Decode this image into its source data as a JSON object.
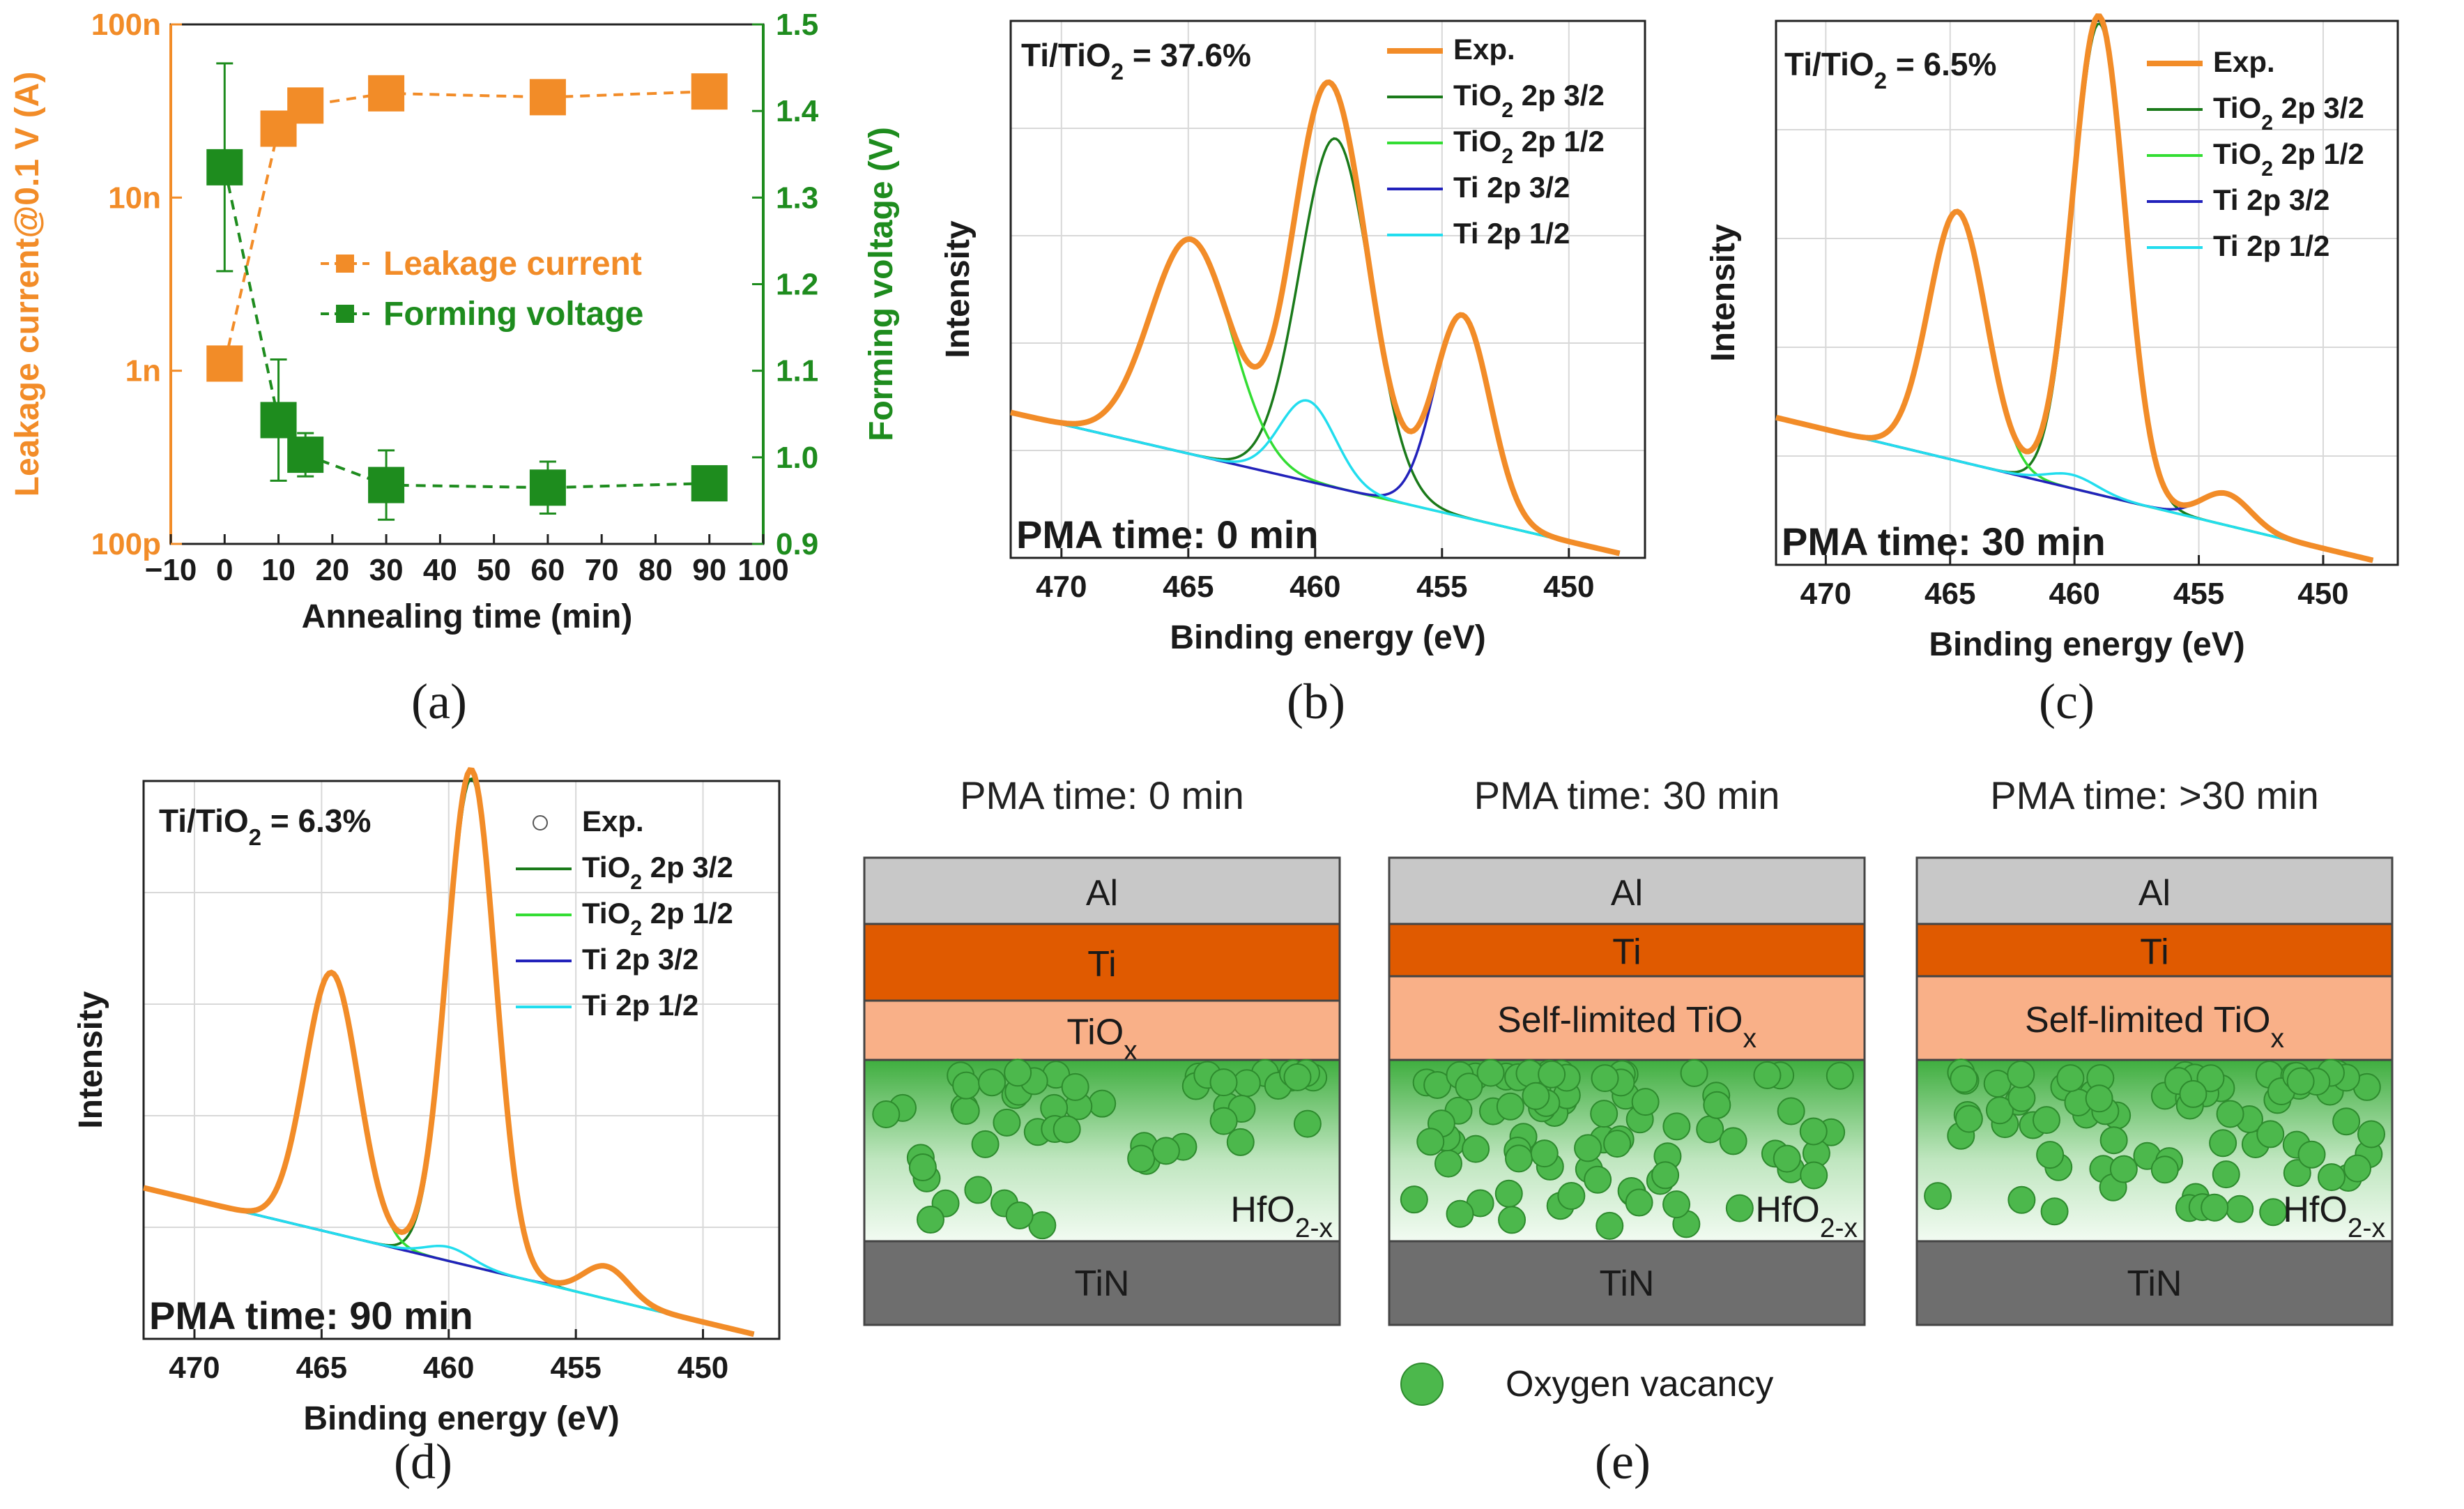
{
  "panel_labels": {
    "a": "(a)",
    "b": "(b)",
    "c": "(c)",
    "d": "(d)",
    "e": "(e)"
  },
  "colors": {
    "orange": "#F28C28",
    "green": "#1E8C1E",
    "tio2_32": "#1A7A1A",
    "tio2_12": "#33DD33",
    "ti_32": "#2222BB",
    "ti_12": "#22DDEE",
    "background": "#909090",
    "al": "#C8C8C8",
    "ti": "#E05A00",
    "tiox": "#F9B088",
    "tin": "#6E6E6E",
    "vacancy": "#4CB84C"
  },
  "chart_data": [
    {
      "id": "a",
      "type": "scatter",
      "xlabel": "Annealing time (min)",
      "ylabel_left": "Leakage current@0.1 V (A)",
      "ylabel_right": "Forming voltage (V)",
      "xlim": [
        -10,
        100
      ],
      "xticks": [
        -10,
        0,
        10,
        20,
        30,
        40,
        50,
        60,
        70,
        80,
        90,
        100
      ],
      "ylim_left_log": [
        1e-10,
        1e-07
      ],
      "yticks_left": [
        {
          "value": 1e-10,
          "label": "100p"
        },
        {
          "value": 1e-09,
          "label": "1n"
        },
        {
          "value": 1e-08,
          "label": "10n"
        },
        {
          "value": 1e-07,
          "label": "100n"
        }
      ],
      "ylim_right": [
        0.9,
        1.5
      ],
      "yticks_right": [
        0.9,
        1.0,
        1.1,
        1.2,
        1.3,
        1.4,
        1.5
      ],
      "series": [
        {
          "name": "Leakage current",
          "axis": "left",
          "x": [
            0,
            10,
            15,
            30,
            60,
            90
          ],
          "y": [
            1.1e-09,
            2.5e-08,
            3.4e-08,
            4e-08,
            3.8e-08,
            4.1e-08
          ]
        },
        {
          "name": "Forming voltage",
          "axis": "right",
          "x": [
            0,
            10,
            15,
            30,
            60,
            90
          ],
          "y": [
            1.335,
            1.043,
            1.003,
            0.968,
            0.965,
            0.97
          ],
          "err": [
            0.12,
            0.07,
            0.025,
            0.04,
            0.03,
            0.015
          ]
        }
      ]
    },
    {
      "id": "b",
      "type": "line",
      "ratio_label": "Ti/TiO₂ = 37.6%",
      "annotation": "PMA time: 0 min",
      "xlabel": "Binding energy (eV)",
      "ylabel": "Intensity",
      "xlim": [
        472,
        447
      ],
      "xticks": [
        470,
        465,
        460,
        455,
        450
      ],
      "ylim": [
        0,
        1.2
      ],
      "background": [
        0.35,
        0.004
      ],
      "peaks": [
        {
          "name": "TiO₂ 2p 3/2",
          "center": 459.2,
          "height": 0.78,
          "sigma": 1.4
        },
        {
          "name": "TiO₂ 2p 1/2",
          "center": 464.9,
          "height": 0.48,
          "sigma": 1.6
        },
        {
          "name": "Ti 2p 3/2",
          "center": 454.2,
          "height": 0.45,
          "sigma": 1.1
        },
        {
          "name": "Ti 2p 1/2",
          "center": 460.3,
          "height": 0.18,
          "sigma": 1.1
        }
      ],
      "legend": [
        "Exp.",
        "TiO₂ 2p 3/2",
        "TiO₂ 2p 1/2",
        "Ti 2p 3/2",
        "Ti 2p 1/2"
      ]
    },
    {
      "id": "c",
      "type": "line",
      "ratio_label": "Ti/TiO₂ = 6.5%",
      "annotation": "PMA time: 30 min",
      "xlabel": "Binding energy (eV)",
      "ylabel": "Intensity",
      "xlim": [
        472,
        447
      ],
      "xticks": [
        470,
        465,
        460,
        455,
        450
      ],
      "ylim": [
        0,
        1.2
      ],
      "background": [
        0.35,
        0.004
      ],
      "peaks": [
        {
          "name": "TiO₂ 2p 3/2",
          "center": 459.0,
          "height": 1.04,
          "sigma": 1.05
        },
        {
          "name": "TiO₂ 2p 1/2",
          "center": 464.7,
          "height": 0.55,
          "sigma": 1.15
        },
        {
          "name": "Ti 2p 3/2",
          "center": 453.9,
          "height": 0.07,
          "sigma": 1.0
        },
        {
          "name": "Ti 2p 1/2",
          "center": 460.1,
          "height": 0.03,
          "sigma": 1.0
        }
      ],
      "legend": [
        "Exp.",
        "TiO₂ 2p 3/2",
        "TiO₂ 2p 1/2",
        "Ti 2p 3/2",
        "Ti 2p 1/2"
      ]
    },
    {
      "id": "d",
      "type": "line",
      "ratio_label": "Ti/TiO₂ = 6.3%",
      "annotation": "PMA time: 90 min",
      "xlabel": "Binding energy (eV)",
      "ylabel": "Intensity",
      "xlim": [
        472,
        447
      ],
      "xticks": [
        470,
        465,
        460,
        455,
        450
      ],
      "ylim": [
        0,
        1.2
      ],
      "background": [
        0.35,
        0.004
      ],
      "peaks": [
        {
          "name": "TiO₂ 2p 3/2",
          "center": 459.1,
          "height": 1.05,
          "sigma": 0.95
        },
        {
          "name": "TiO₂ 2p 1/2",
          "center": 464.6,
          "height": 0.56,
          "sigma": 1.05
        },
        {
          "name": "Ti 2p 3/2",
          "center": 453.8,
          "height": 0.07,
          "sigma": 0.9
        },
        {
          "name": "Ti 2p 1/2",
          "center": 460.0,
          "height": 0.03,
          "sigma": 0.9
        }
      ],
      "legend": [
        "Exp.",
        "TiO₂ 2p 3/2",
        "TiO₂ 2p 1/2",
        "Ti 2p 3/2",
        "Ti 2p 1/2"
      ]
    }
  ],
  "schematic": {
    "stacks": [
      {
        "title": "PMA time: 0 min",
        "al": "Al",
        "ti": "Ti",
        "tiox": "TiO",
        "tiox_sub": "x",
        "hfo": "HfO",
        "hfo_sub": "2-x",
        "tin": "TiN"
      },
      {
        "title": "PMA time: 30 min",
        "al": "Al",
        "ti": "Ti",
        "tiox": "Self-limited TiO",
        "tiox_sub": "x",
        "hfo": "HfO",
        "hfo_sub": "2-x",
        "tin": "TiN"
      },
      {
        "title": "PMA time: >30 min",
        "al": "Al",
        "ti": "Ti",
        "tiox": "Self-limited TiO",
        "tiox_sub": "x",
        "hfo": "HfO",
        "hfo_sub": "2-x",
        "tin": "TiN"
      }
    ],
    "legend_label": "Oxygen vacancy"
  }
}
